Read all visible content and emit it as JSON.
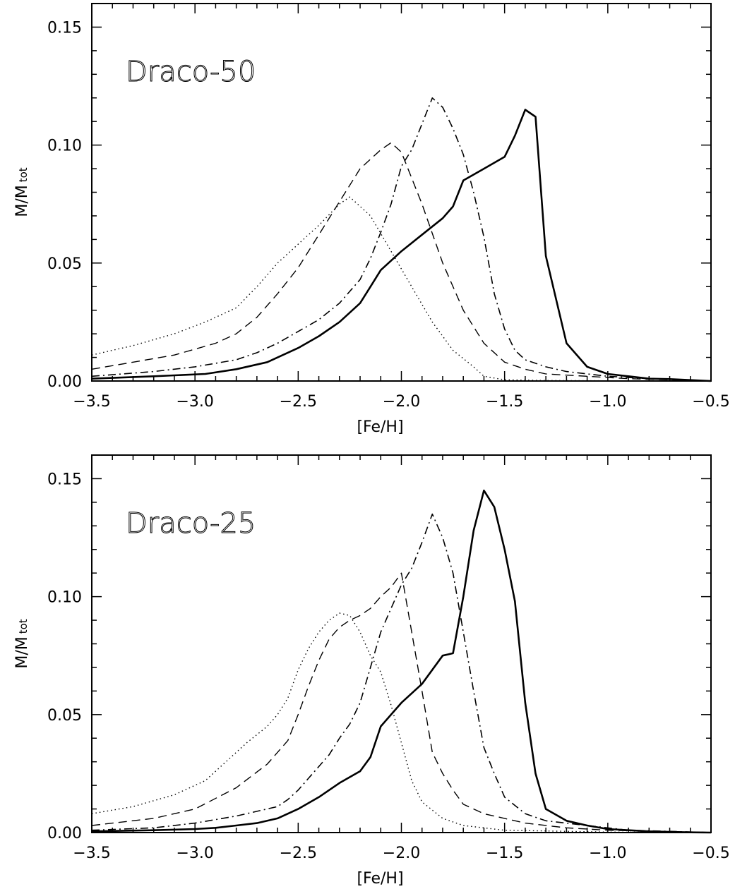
{
  "chart_data": [
    {
      "type": "line",
      "annotation": "Draco-50",
      "xlabel": "[Fe/H]",
      "ylabel_main": "M/M",
      "ylabel_sub": "tot",
      "xlim": [
        -3.5,
        -0.5
      ],
      "ylim": [
        0.0,
        0.16
      ],
      "xticks": [
        "−3.5",
        "−3.0",
        "−2.5",
        "−2.0",
        "−1.5",
        "−1.0",
        "−0.5"
      ],
      "yticks": [
        "0.00",
        "0.05",
        "0.10",
        "0.15"
      ],
      "series": [
        {
          "style": "dotted",
          "x": [
            -3.5,
            -3.3,
            -3.1,
            -2.95,
            -2.8,
            -2.7,
            -2.6,
            -2.5,
            -2.4,
            -2.3,
            -2.25,
            -2.15,
            -2.05,
            -1.95,
            -1.85,
            -1.75,
            -1.65,
            -1.6,
            -1.5,
            -1.3,
            -1.0,
            -0.5
          ],
          "y": [
            0.011,
            0.015,
            0.02,
            0.025,
            0.031,
            0.04,
            0.05,
            0.058,
            0.066,
            0.075,
            0.078,
            0.07,
            0.055,
            0.04,
            0.025,
            0.013,
            0.006,
            0.002,
            0.0005,
            0.0002,
            0.0001,
            0.0
          ]
        },
        {
          "style": "dashed",
          "x": [
            -3.5,
            -3.3,
            -3.1,
            -2.9,
            -2.8,
            -2.7,
            -2.6,
            -2.5,
            -2.4,
            -2.3,
            -2.2,
            -2.1,
            -2.05,
            -2.0,
            -1.9,
            -1.8,
            -1.7,
            -1.6,
            -1.5,
            -1.4,
            -1.3,
            -1.1,
            -0.9,
            -0.7,
            -0.5
          ],
          "y": [
            0.005,
            0.008,
            0.011,
            0.016,
            0.02,
            0.027,
            0.037,
            0.048,
            0.062,
            0.076,
            0.09,
            0.098,
            0.101,
            0.097,
            0.075,
            0.05,
            0.03,
            0.016,
            0.008,
            0.005,
            0.003,
            0.002,
            0.001,
            0.0005,
            0.0
          ]
        },
        {
          "style": "dashdot",
          "x": [
            -3.5,
            -3.2,
            -3.0,
            -2.8,
            -2.7,
            -2.6,
            -2.5,
            -2.4,
            -2.3,
            -2.2,
            -2.15,
            -2.1,
            -2.05,
            -2.0,
            -1.95,
            -1.85,
            -1.8,
            -1.75,
            -1.7,
            -1.65,
            -1.6,
            -1.55,
            -1.5,
            -1.45,
            -1.4,
            -1.3,
            -1.2,
            -1.0,
            -0.8,
            -0.5
          ],
          "y": [
            0.002,
            0.004,
            0.006,
            0.009,
            0.012,
            0.016,
            0.021,
            0.026,
            0.033,
            0.043,
            0.052,
            0.063,
            0.075,
            0.091,
            0.098,
            0.12,
            0.116,
            0.107,
            0.096,
            0.08,
            0.061,
            0.037,
            0.022,
            0.013,
            0.009,
            0.006,
            0.004,
            0.002,
            0.001,
            0.0
          ]
        },
        {
          "style": "solid",
          "x": [
            -3.5,
            -3.2,
            -2.95,
            -2.8,
            -2.65,
            -2.5,
            -2.4,
            -2.3,
            -2.2,
            -2.15,
            -2.1,
            -2.0,
            -1.9,
            -1.8,
            -1.75,
            -1.7,
            -1.6,
            -1.5,
            -1.45,
            -1.4,
            -1.35,
            -1.3,
            -1.2,
            -1.1,
            -1.0,
            -0.9,
            -0.8,
            -0.7,
            -0.6,
            -0.5
          ],
          "y": [
            0.001,
            0.002,
            0.003,
            0.005,
            0.008,
            0.014,
            0.019,
            0.025,
            0.033,
            0.04,
            0.047,
            0.055,
            0.062,
            0.069,
            0.074,
            0.085,
            0.09,
            0.095,
            0.104,
            0.115,
            0.112,
            0.053,
            0.016,
            0.006,
            0.003,
            0.002,
            0.001,
            0.0008,
            0.0004,
            0.0
          ]
        }
      ]
    },
    {
      "type": "line",
      "annotation": "Draco-25",
      "xlabel": "[Fe/H]",
      "ylabel_main": "M/M",
      "ylabel_sub": "tot",
      "xlim": [
        -3.5,
        -0.5
      ],
      "ylim": [
        0.0,
        0.16
      ],
      "xticks": [
        "−3.5",
        "−3.0",
        "−2.5",
        "−2.0",
        "−1.5",
        "−1.0",
        "−0.5"
      ],
      "yticks": [
        "0.00",
        "0.05",
        "0.10",
        "0.15"
      ],
      "series": [
        {
          "style": "dotted",
          "x": [
            -3.5,
            -3.3,
            -3.1,
            -2.95,
            -2.85,
            -2.75,
            -2.65,
            -2.6,
            -2.55,
            -2.5,
            -2.45,
            -2.4,
            -2.35,
            -2.3,
            -2.25,
            -2.2,
            -2.15,
            -2.1,
            -2.05,
            -2.0,
            -1.95,
            -1.9,
            -1.8,
            -1.7,
            -1.5,
            -1.0,
            -0.5
          ],
          "y": [
            0.008,
            0.011,
            0.016,
            0.022,
            0.03,
            0.038,
            0.045,
            0.05,
            0.057,
            0.069,
            0.078,
            0.085,
            0.09,
            0.093,
            0.092,
            0.085,
            0.075,
            0.068,
            0.054,
            0.038,
            0.022,
            0.013,
            0.006,
            0.003,
            0.001,
            0.0002,
            0.0
          ]
        },
        {
          "style": "dashed",
          "x": [
            -3.5,
            -3.2,
            -3.0,
            -2.8,
            -2.65,
            -2.55,
            -2.5,
            -2.45,
            -2.4,
            -2.35,
            -2.3,
            -2.25,
            -2.2,
            -2.15,
            -2.1,
            -2.05,
            -2.0,
            -1.95,
            -1.9,
            -1.85,
            -1.8,
            -1.75,
            -1.7,
            -1.6,
            -1.4,
            -1.2,
            -1.0,
            -0.7,
            -0.5
          ],
          "y": [
            0.003,
            0.006,
            0.01,
            0.019,
            0.029,
            0.039,
            0.05,
            0.062,
            0.073,
            0.082,
            0.087,
            0.09,
            0.092,
            0.095,
            0.1,
            0.104,
            0.11,
            0.085,
            0.06,
            0.034,
            0.025,
            0.018,
            0.012,
            0.008,
            0.004,
            0.002,
            0.001,
            0.0004,
            0.0
          ]
        },
        {
          "style": "dashdot",
          "x": [
            -3.5,
            -3.2,
            -3.0,
            -2.8,
            -2.7,
            -2.6,
            -2.55,
            -2.5,
            -2.45,
            -2.4,
            -2.35,
            -2.3,
            -2.25,
            -2.2,
            -2.15,
            -2.1,
            -2.05,
            -2.0,
            -1.95,
            -1.9,
            -1.85,
            -1.8,
            -1.75,
            -1.7,
            -1.65,
            -1.6,
            -1.55,
            -1.5,
            -1.4,
            -1.3,
            -1.1,
            -0.9,
            -0.7,
            -0.5
          ],
          "y": [
            0.001,
            0.002,
            0.004,
            0.007,
            0.009,
            0.011,
            0.014,
            0.018,
            0.023,
            0.028,
            0.033,
            0.04,
            0.046,
            0.055,
            0.07,
            0.085,
            0.095,
            0.105,
            0.112,
            0.123,
            0.135,
            0.125,
            0.11,
            0.085,
            0.06,
            0.036,
            0.025,
            0.015,
            0.008,
            0.005,
            0.003,
            0.001,
            0.0005,
            0.0
          ]
        },
        {
          "style": "solid",
          "x": [
            -3.5,
            -3.2,
            -3.0,
            -2.9,
            -2.8,
            -2.7,
            -2.6,
            -2.5,
            -2.4,
            -2.3,
            -2.2,
            -2.15,
            -2.1,
            -2.0,
            -1.9,
            -1.8,
            -1.75,
            -1.7,
            -1.65,
            -1.6,
            -1.55,
            -1.5,
            -1.45,
            -1.4,
            -1.35,
            -1.3,
            -1.2,
            -1.1,
            -1.0,
            -0.9,
            -0.8,
            -0.7,
            -0.6,
            -0.5
          ],
          "y": [
            0.0005,
            0.001,
            0.0015,
            0.002,
            0.003,
            0.004,
            0.006,
            0.01,
            0.015,
            0.021,
            0.026,
            0.032,
            0.045,
            0.055,
            0.063,
            0.075,
            0.076,
            0.1,
            0.128,
            0.145,
            0.138,
            0.12,
            0.098,
            0.055,
            0.025,
            0.01,
            0.005,
            0.003,
            0.0015,
            0.001,
            0.0005,
            0.0003,
            0.0001,
            0.0
          ]
        }
      ]
    }
  ]
}
